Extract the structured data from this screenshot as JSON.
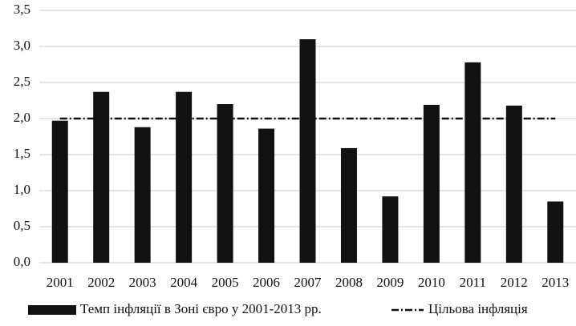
{
  "chart_data": {
    "type": "bar",
    "categories": [
      "2001",
      "2002",
      "2003",
      "2004",
      "2005",
      "2006",
      "2007",
      "2008",
      "2009",
      "2010",
      "2011",
      "2012",
      "2013"
    ],
    "series": [
      {
        "name": "Темп інфляції в Зоні євро у 2001-2013  рр.",
        "color": "#111111",
        "type": "bar",
        "values": [
          1.97,
          2.37,
          1.88,
          2.37,
          2.2,
          1.86,
          3.1,
          1.59,
          0.92,
          2.19,
          2.78,
          2.18,
          0.85
        ]
      },
      {
        "name": "Цільова інфляція",
        "color": "#111111",
        "type": "line",
        "values": [
          2.0,
          2.0,
          2.0,
          2.0,
          2.0,
          2.0,
          2.0,
          2.0,
          2.0,
          2.0,
          2.0,
          2.0,
          2.0
        ]
      }
    ],
    "ylim": [
      0,
      3.5
    ],
    "yticks": [
      {
        "value": 0,
        "label": "0,0"
      },
      {
        "value": 0.5,
        "label": "0,5"
      },
      {
        "value": 1,
        "label": "1,0"
      },
      {
        "value": 1.5,
        "label": "1,5"
      },
      {
        "value": 2,
        "label": "2,0"
      },
      {
        "value": 2.5,
        "label": "2,5"
      },
      {
        "value": 3,
        "label": "3,0"
      },
      {
        "value": 3.5,
        "label": "3,5"
      }
    ],
    "grid": true
  }
}
